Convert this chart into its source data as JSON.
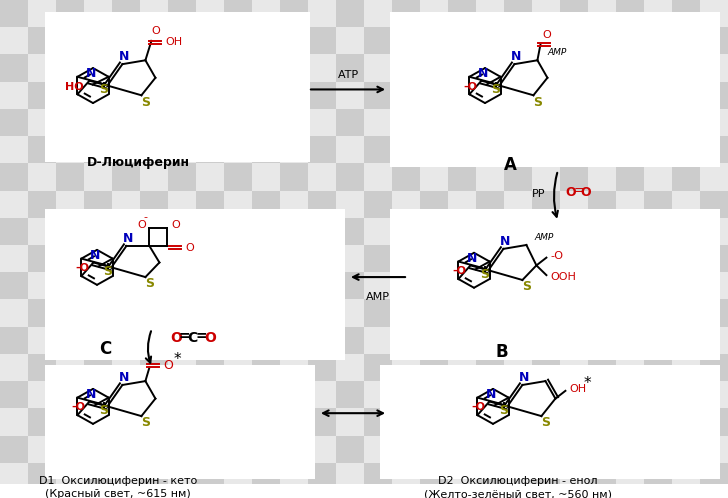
{
  "black": "#000000",
  "red": "#cc0000",
  "blue": "#0000bb",
  "yellow": "#888800",
  "gray1": "#cccccc",
  "gray2": "#e8e8e8",
  "label_luciferin": "D-Люциферин",
  "label_A": "A",
  "label_B": "B",
  "label_C": "C",
  "label_ATP": "АТР",
  "label_PP": "РР",
  "label_AMP": "АМР",
  "label_D1a": "D1  Оксилюциферин - кето",
  "label_D1b": "(Красный свет, ~615 нм)",
  "label_D2a": "D2  Оксилюциферин - енол",
  "label_D2b": "(Желто-зелёный свет, ~560 нм)"
}
